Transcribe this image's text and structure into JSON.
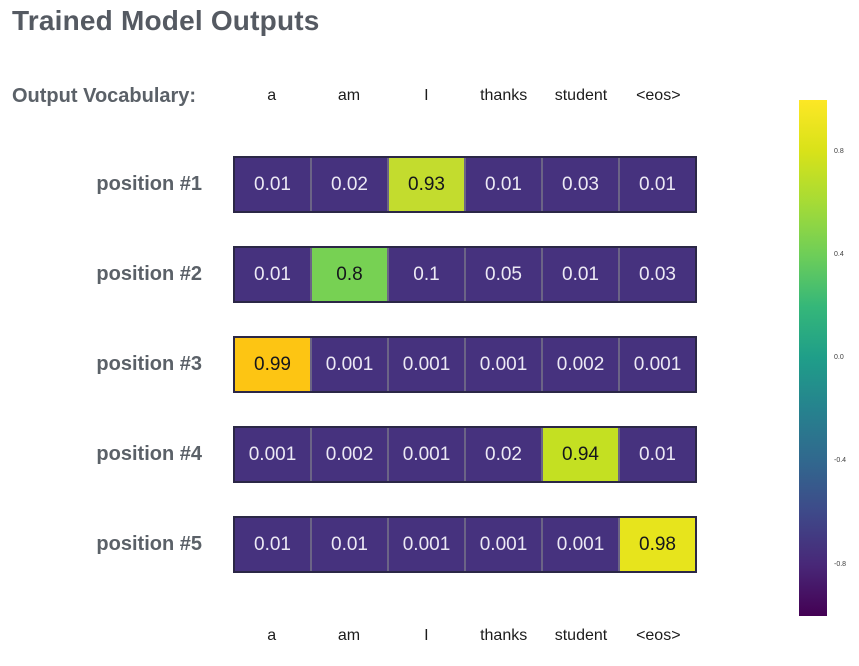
{
  "title": "Trained Model Outputs",
  "vocab_label": "Output Vocabulary:",
  "columns": [
    "a",
    "am",
    "I",
    "thanks",
    "student",
    "<eos>"
  ],
  "palette": {
    "cell_default_bg": "#46327e",
    "cell_default_fg": "#ece9f4",
    "highlight_fg": "#15161c",
    "cell_border_outer": "#2b2746",
    "cell_border_inner": "#6b6486",
    "label_gray": "#5b6168",
    "title_gray": "#555a62"
  },
  "rows": [
    {
      "label": "position #1",
      "cells": [
        {
          "value": "0.01",
          "bg": "#46327e",
          "fg": "#ece9f4"
        },
        {
          "value": "0.02",
          "bg": "#46327e",
          "fg": "#ece9f4"
        },
        {
          "value": "0.93",
          "bg": "#c3dc2e",
          "fg": "#15161c"
        },
        {
          "value": "0.01",
          "bg": "#46327e",
          "fg": "#ece9f4"
        },
        {
          "value": "0.03",
          "bg": "#46327e",
          "fg": "#ece9f4"
        },
        {
          "value": "0.01",
          "bg": "#46327e",
          "fg": "#ece9f4"
        }
      ]
    },
    {
      "label": "position #2",
      "cells": [
        {
          "value": "0.01",
          "bg": "#46327e",
          "fg": "#ece9f4"
        },
        {
          "value": "0.8",
          "bg": "#77d153",
          "fg": "#15161c"
        },
        {
          "value": "0.1",
          "bg": "#46327e",
          "fg": "#ece9f4"
        },
        {
          "value": "0.05",
          "bg": "#46327e",
          "fg": "#ece9f4"
        },
        {
          "value": "0.01",
          "bg": "#46327e",
          "fg": "#ece9f4"
        },
        {
          "value": "0.03",
          "bg": "#46327e",
          "fg": "#ece9f4"
        }
      ]
    },
    {
      "label": "position #3",
      "cells": [
        {
          "value": "0.99",
          "bg": "#fdc513",
          "fg": "#15161c"
        },
        {
          "value": "0.001",
          "bg": "#46327e",
          "fg": "#ece9f4"
        },
        {
          "value": "0.001",
          "bg": "#46327e",
          "fg": "#ece9f4"
        },
        {
          "value": "0.001",
          "bg": "#46327e",
          "fg": "#ece9f4"
        },
        {
          "value": "0.002",
          "bg": "#46327e",
          "fg": "#ece9f4"
        },
        {
          "value": "0.001",
          "bg": "#46327e",
          "fg": "#ece9f4"
        }
      ]
    },
    {
      "label": "position #4",
      "cells": [
        {
          "value": "0.001",
          "bg": "#46327e",
          "fg": "#ece9f4"
        },
        {
          "value": "0.002",
          "bg": "#46327e",
          "fg": "#ece9f4"
        },
        {
          "value": "0.001",
          "bg": "#46327e",
          "fg": "#ece9f4"
        },
        {
          "value": "0.02",
          "bg": "#46327e",
          "fg": "#ece9f4"
        },
        {
          "value": "0.94",
          "bg": "#c4e022",
          "fg": "#15161c"
        },
        {
          "value": "0.01",
          "bg": "#46327e",
          "fg": "#ece9f4"
        }
      ]
    },
    {
      "label": "position #5",
      "cells": [
        {
          "value": "0.01",
          "bg": "#46327e",
          "fg": "#ece9f4"
        },
        {
          "value": "0.01",
          "bg": "#46327e",
          "fg": "#ece9f4"
        },
        {
          "value": "0.001",
          "bg": "#46327e",
          "fg": "#ece9f4"
        },
        {
          "value": "0.001",
          "bg": "#46327e",
          "fg": "#ece9f4"
        },
        {
          "value": "0.001",
          "bg": "#46327e",
          "fg": "#ece9f4"
        },
        {
          "value": "0.98",
          "bg": "#e7e41c",
          "fg": "#15161c"
        }
      ]
    }
  ],
  "colorbar": {
    "ticks": [
      {
        "label": "0.8"
      },
      {
        "label": "0.4"
      },
      {
        "label": "0.0"
      },
      {
        "label": "-0.4"
      },
      {
        "label": "-0.8"
      }
    ],
    "gradient": [
      "#fde725",
      "#d8e219",
      "#a5db36",
      "#6ece58",
      "#35b779",
      "#1f9e89",
      "#26828e",
      "#31688e",
      "#3e4989",
      "#482878",
      "#440154"
    ]
  },
  "chart_data": {
    "type": "heatmap",
    "title": "Trained Model Outputs",
    "x_categories": [
      "a",
      "am",
      "I",
      "thanks",
      "student",
      "<eos>"
    ],
    "y_categories": [
      "position #1",
      "position #2",
      "position #3",
      "position #4",
      "position #5"
    ],
    "values": [
      [
        0.01,
        0.02,
        0.93,
        0.01,
        0.03,
        0.01
      ],
      [
        0.01,
        0.8,
        0.1,
        0.05,
        0.01,
        0.03
      ],
      [
        0.99,
        0.001,
        0.001,
        0.001,
        0.002,
        0.001
      ],
      [
        0.001,
        0.002,
        0.001,
        0.02,
        0.94,
        0.01
      ],
      [
        0.01,
        0.01,
        0.001,
        0.001,
        0.001,
        0.98
      ]
    ],
    "colormap": "viridis",
    "colorbar_ticks": [
      0.8,
      0.4,
      0.0,
      -0.4,
      -0.8
    ],
    "colorbar_range": [
      -1,
      1
    ],
    "legend_position": "right",
    "grid": false
  }
}
